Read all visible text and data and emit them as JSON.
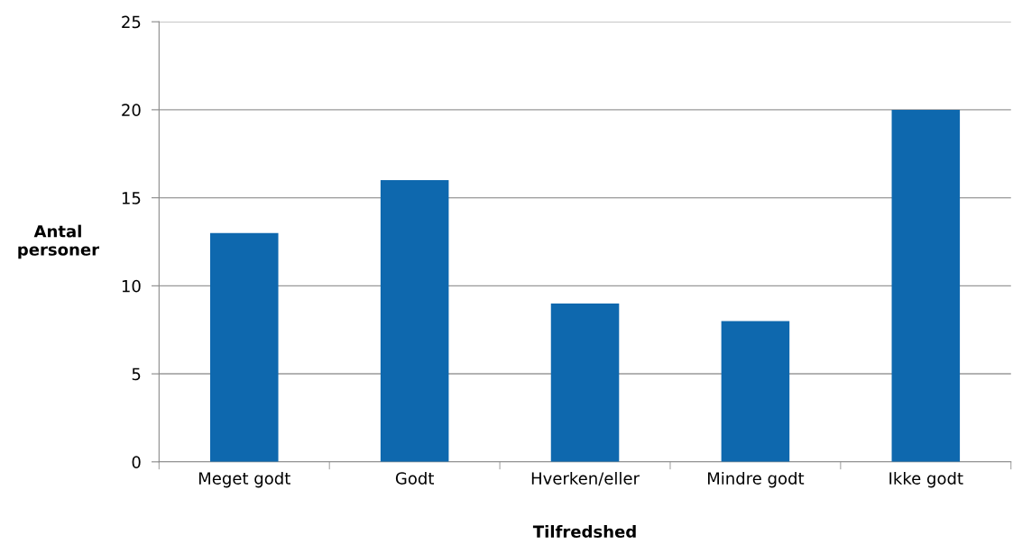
{
  "chart_data": {
    "type": "bar",
    "xlabel": "Tilfredshed",
    "ylabel": "Antal\npersoner",
    "categories": [
      "Meget godt",
      "Godt",
      "Hverken/eller",
      "Mindre godt",
      "Ikke godt"
    ],
    "values": [
      13,
      16,
      9,
      8,
      20
    ],
    "color": "#0e68ae",
    "ylim": [
      0,
      25
    ],
    "yticks": [
      0,
      5,
      10,
      15,
      20,
      25
    ],
    "grid": "y",
    "legend": false
  }
}
